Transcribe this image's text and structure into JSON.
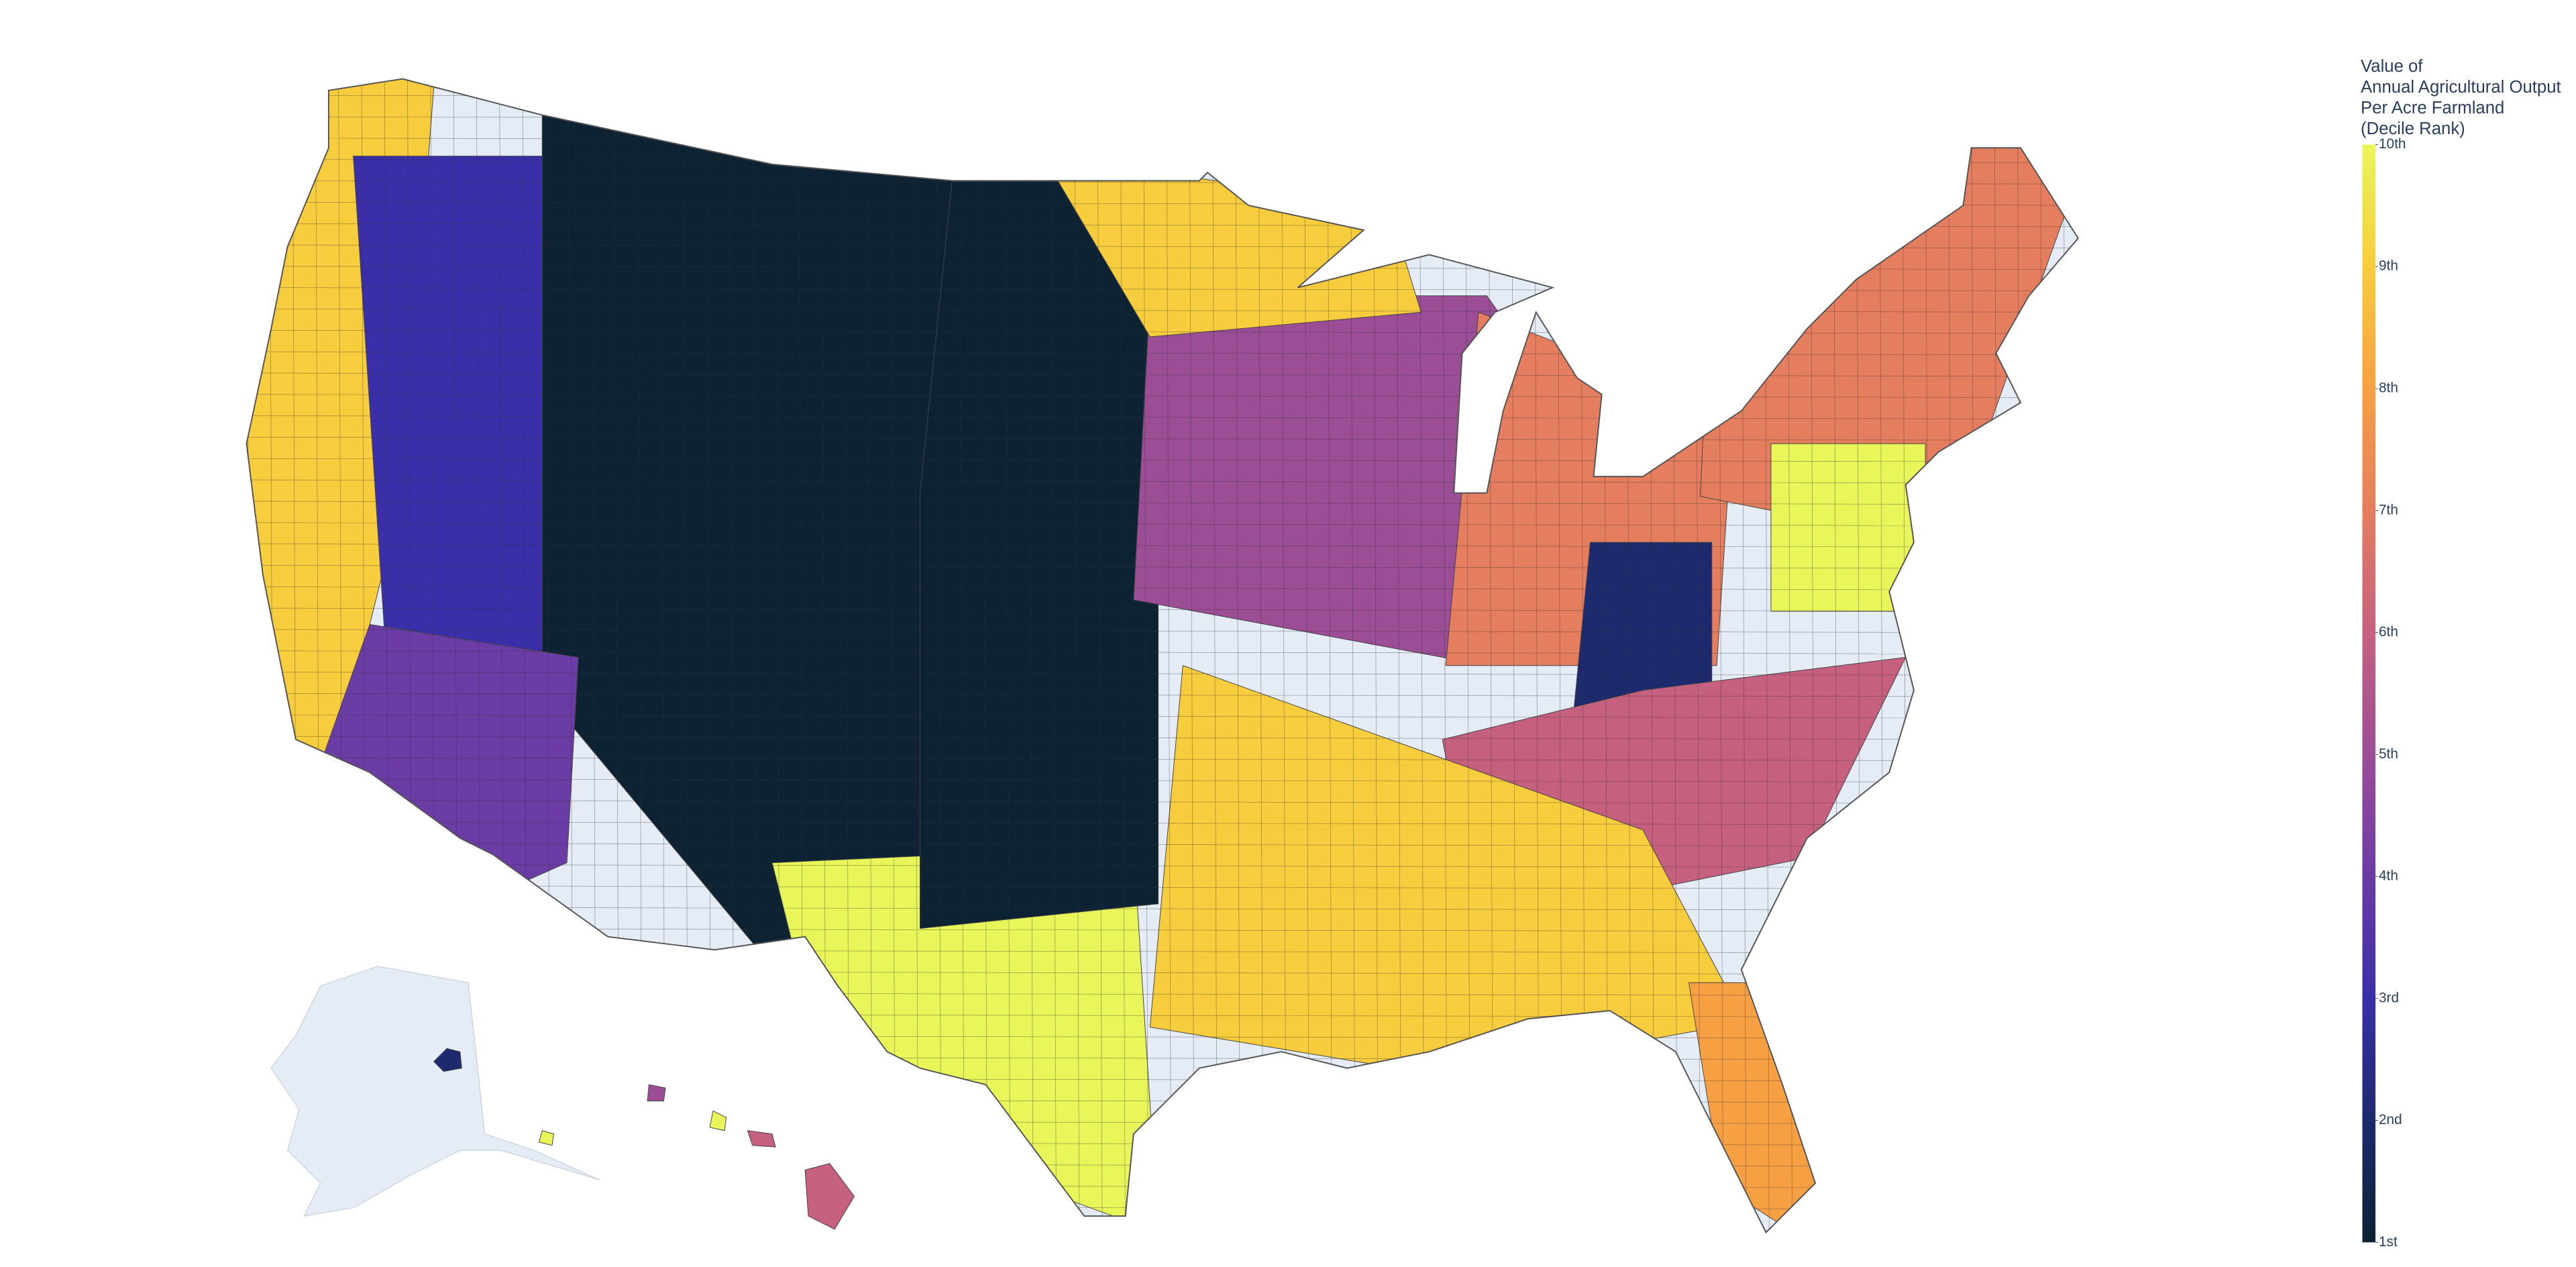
{
  "chart_data": {
    "type": "choropleth",
    "colorbar_title": [
      "Value of",
      "Annual Agricultural Output",
      "Per Acre Farmland",
      "(Decile Rank)"
    ],
    "zlim": [
      1,
      10
    ],
    "zticks": [
      {
        "value": 1,
        "label": "1st"
      },
      {
        "value": 2,
        "label": "2nd"
      },
      {
        "value": 3,
        "label": "3rd"
      },
      {
        "value": 4,
        "label": "4th"
      },
      {
        "value": 5,
        "label": "5th"
      },
      {
        "value": 6,
        "label": "6th"
      },
      {
        "value": 7,
        "label": "7th"
      },
      {
        "value": 8,
        "label": "8th"
      },
      {
        "value": 9,
        "label": "9th"
      },
      {
        "value": 10,
        "label": "10th"
      }
    ],
    "colorscale": [
      "#0d2233",
      "#1d2a6e",
      "#3a2fa8",
      "#6b3ba6",
      "#9b4d96",
      "#c5617f",
      "#e57d5f",
      "#f7a043",
      "#f7cc3d",
      "#e9f65a"
    ],
    "no_data_color": "#e5ecf6",
    "values": [
      9,
      3,
      1,
      4,
      10,
      1,
      5,
      9,
      7,
      2,
      6,
      9,
      7,
      10,
      8,
      2,
      5,
      6,
      10,
      10
    ]
  }
}
